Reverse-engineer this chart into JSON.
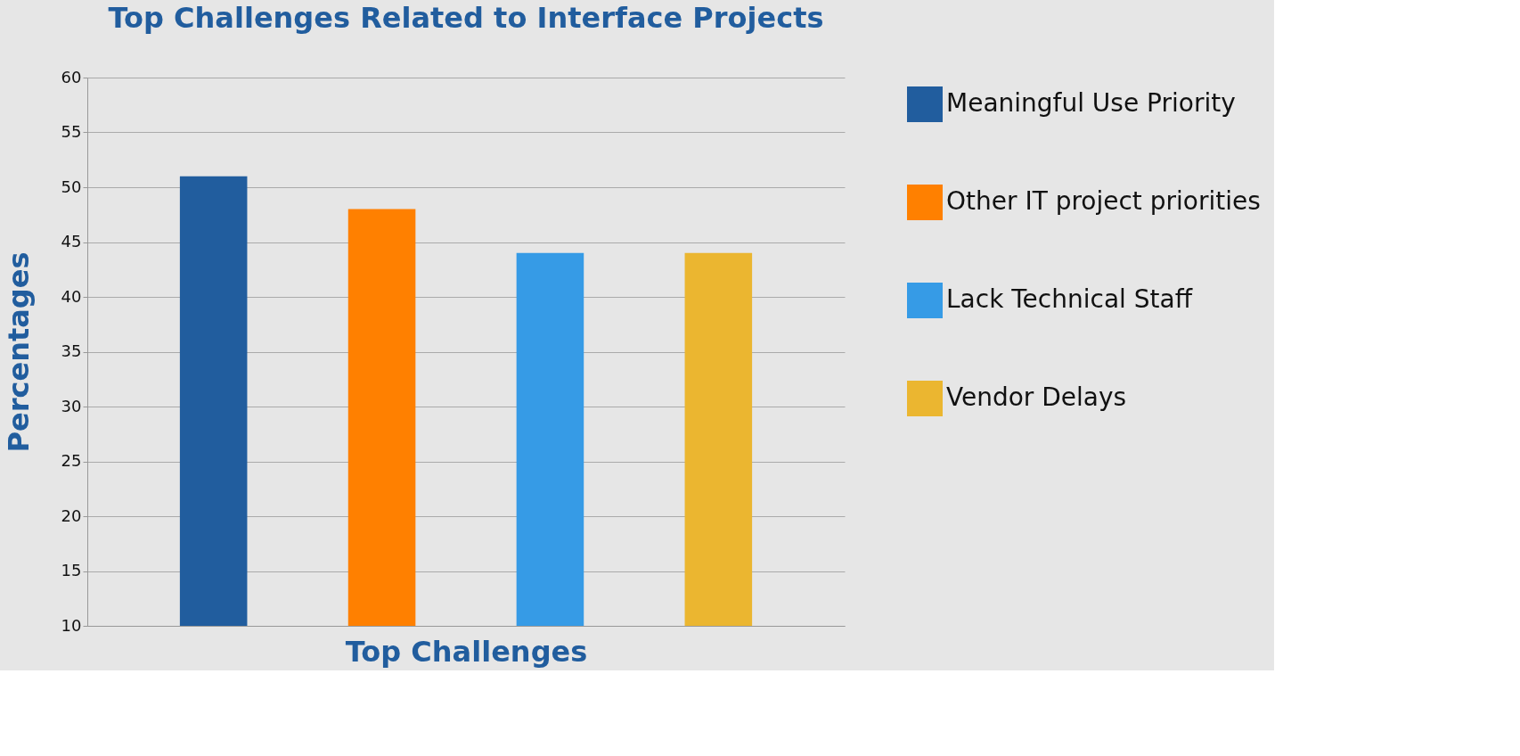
{
  "chart_data": {
    "type": "bar",
    "title": "Top Challenges Related to Interface Projects",
    "xlabel": "Top Challenges",
    "ylabel": "Percentages",
    "categories": [
      null
    ],
    "series": [
      {
        "name": "Meaningful Use Priority",
        "color": "#215d9e",
        "values": [
          51
        ]
      },
      {
        "name": "Other IT project priorities",
        "color": "#ff8000",
        "values": [
          48
        ]
      },
      {
        "name": "Lack Technical Staff",
        "color": "#369be6",
        "values": [
          44
        ]
      },
      {
        "name": "Vendor Delays",
        "color": "#ebb630",
        "values": [
          44
        ]
      }
    ],
    "ylim": [
      10,
      60
    ],
    "yticks": [
      10,
      15,
      20,
      25,
      30,
      35,
      40,
      45,
      50,
      55,
      60
    ],
    "grid": "y",
    "legend": "right",
    "tick_labels": "y"
  }
}
